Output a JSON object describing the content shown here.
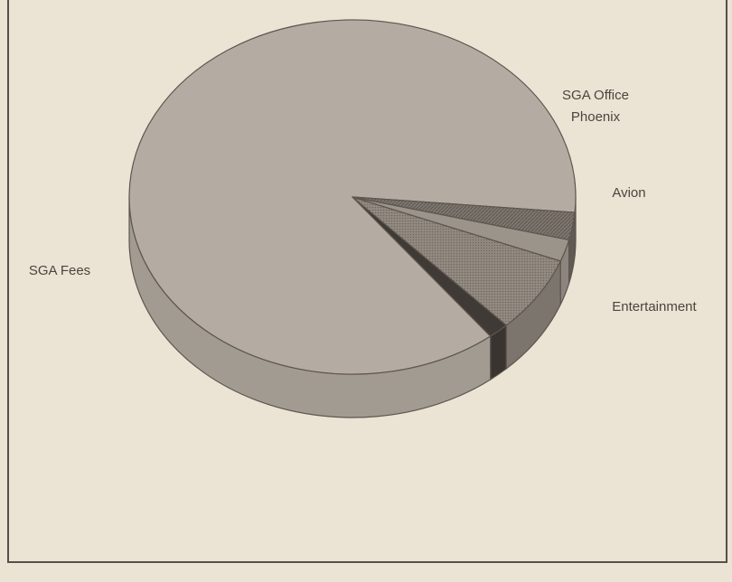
{
  "chart_data": {
    "type": "pie",
    "style": "3d",
    "title": "",
    "slices": [
      {
        "label": "SGA Fees",
        "value": 87.0,
        "color": "#b4aca2"
      },
      {
        "label": "Entertainment",
        "value": 1.5,
        "color": "#3f3a35"
      },
      {
        "label": "Avion",
        "value": 7.0,
        "color": "#8a8279"
      },
      {
        "label": "Phoenix",
        "value": 2.0,
        "color": "#9b948b"
      },
      {
        "label": "SGA Office",
        "value": 2.5,
        "color": "#6a645c"
      }
    ],
    "labels": {
      "sga_fees": "SGA Fees",
      "sga_office": "SGA Office",
      "phoenix": "Phoenix",
      "avion": "Avion",
      "entertainment": "Entertainment"
    }
  }
}
